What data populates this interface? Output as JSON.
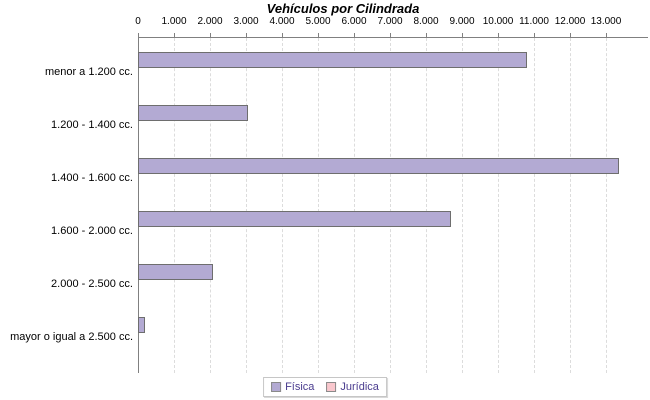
{
  "chart_data": {
    "type": "bar",
    "orientation": "horizontal",
    "title": "Vehículos por Cilindrada",
    "categories": [
      "menor a 1.200 cc.",
      "1.200 - 1.400 cc.",
      "1.400 - 1.600 cc.",
      "1.600 - 2.000 cc.",
      "2.000 - 2.500 cc.",
      "mayor o igual a 2.500 cc."
    ],
    "series": [
      {
        "name": "Física",
        "color": "#b3aad3",
        "border_color": "#6e6e6e",
        "values": [
          10800,
          3050,
          13350,
          8700,
          2080,
          200
        ]
      },
      {
        "name": "Jurídica",
        "color": "#f9c7cd",
        "border_color": "#a08488",
        "values": [
          0,
          0,
          0,
          0,
          0,
          0
        ]
      }
    ],
    "xlim": [
      0,
      14100
    ],
    "x_ticks": [
      0,
      1000,
      2000,
      3000,
      4000,
      5000,
      6000,
      7000,
      8000,
      9000,
      10000,
      11000,
      12000,
      13000
    ],
    "x_tick_labels": [
      "0",
      "1.000",
      "2.000",
      "3.000",
      "4.000",
      "5.000",
      "6.000",
      "7.000",
      "8.000",
      "9.000",
      "10.000",
      "11.000",
      "12.000",
      "13.000"
    ],
    "grid": "vertical-dashed",
    "legend_position": "bottom",
    "colors": {
      "axis_line": "#808080",
      "gridline": "#dcdcdc",
      "tick_label": "#000000",
      "category_label": "#000000",
      "legend_text": "#4a3c8f",
      "legend_border": "#c6c6c6",
      "background": "#ffffff"
    }
  }
}
